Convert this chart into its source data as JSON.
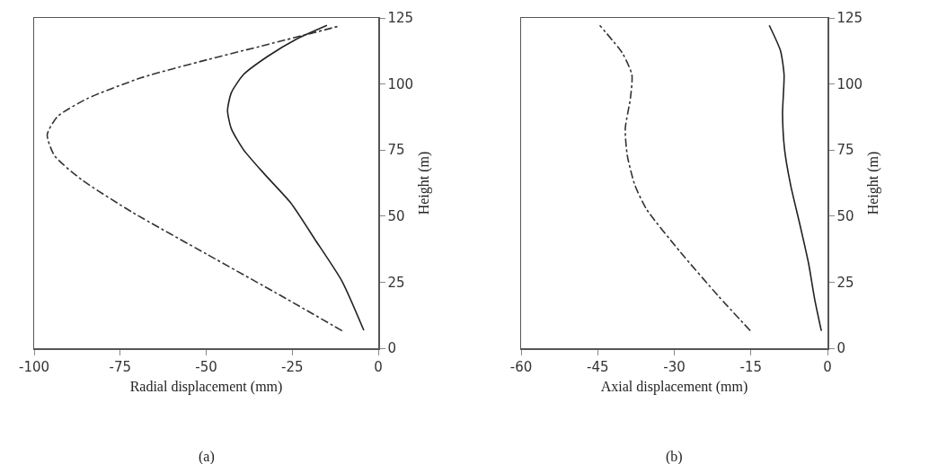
{
  "chart_data": [
    {
      "type": "line",
      "xlabel": "Radial displacement (mm)",
      "ylabel": "Height (m)",
      "annotations": [
        "(a)"
      ],
      "xlim": [
        -100,
        0
      ],
      "xticks": [
        -100,
        -75,
        -50,
        -25,
        0
      ],
      "ylim": [
        0,
        125
      ],
      "yticks": [
        0,
        25,
        50,
        75,
        100,
        125
      ],
      "series": [
        {
          "color": "#222222",
          "line_style": "solid",
          "x": [
            -4.2,
            -10.5,
            -18.4,
            -25.3,
            -33.2,
            -39.2,
            -42.7,
            -43.8,
            -42.7,
            -39.2,
            -32.3,
            -23.6,
            -14.9
          ],
          "values": [
            6.8,
            25.3,
            41.2,
            54.8,
            66.1,
            75.2,
            83.1,
            89.9,
            96.7,
            103.5,
            110.3,
            117.1,
            122.2
          ]
        },
        {
          "color": "#333333",
          "line_style": "dashdot",
          "x": [
            -10.5,
            -27.9,
            -49.7,
            -71.4,
            -86.2,
            -94.1,
            -96.2,
            -93.2,
            -84.5,
            -68.8,
            -49.7,
            -32.3,
            -11.4
          ],
          "values": [
            6.6,
            19.6,
            35.5,
            51.4,
            63.8,
            72.9,
            80.8,
            87.7,
            94.5,
            102.4,
            109.2,
            114.9,
            121.9
          ]
        }
      ]
    },
    {
      "type": "line",
      "xlabel": "Axial displacement (mm)",
      "ylabel": "Height (m)",
      "annotations": [
        "(b)"
      ],
      "xlim": [
        -60,
        0
      ],
      "xticks": [
        -60,
        -45,
        -30,
        -15,
        0
      ],
      "ylim": [
        0,
        125
      ],
      "yticks": [
        0,
        25,
        50,
        75,
        100,
        125
      ],
      "series": [
        {
          "color": "#222222",
          "line_style": "solid",
          "x": [
            -1.2,
            -2.5,
            -3.7,
            -5.4,
            -7.2,
            -8.4,
            -8.8,
            -8.5,
            -9.2,
            -11.4
          ],
          "values": [
            6.6,
            18.5,
            32.1,
            46.8,
            61.6,
            75.2,
            88.8,
            103.5,
            112.6,
            122.2
          ]
        },
        {
          "color": "#333333",
          "line_style": "dashdot",
          "x": [
            -15.1,
            -21.3,
            -28.9,
            -35.4,
            -37.7,
            -39.2,
            -39.6,
            -38.6,
            -38.3,
            -40.1,
            -44.6
          ],
          "values": [
            6.6,
            19.6,
            36.6,
            52.5,
            61.6,
            72.9,
            83.1,
            94.5,
            103.5,
            111.5,
            122.2
          ]
        }
      ]
    }
  ]
}
